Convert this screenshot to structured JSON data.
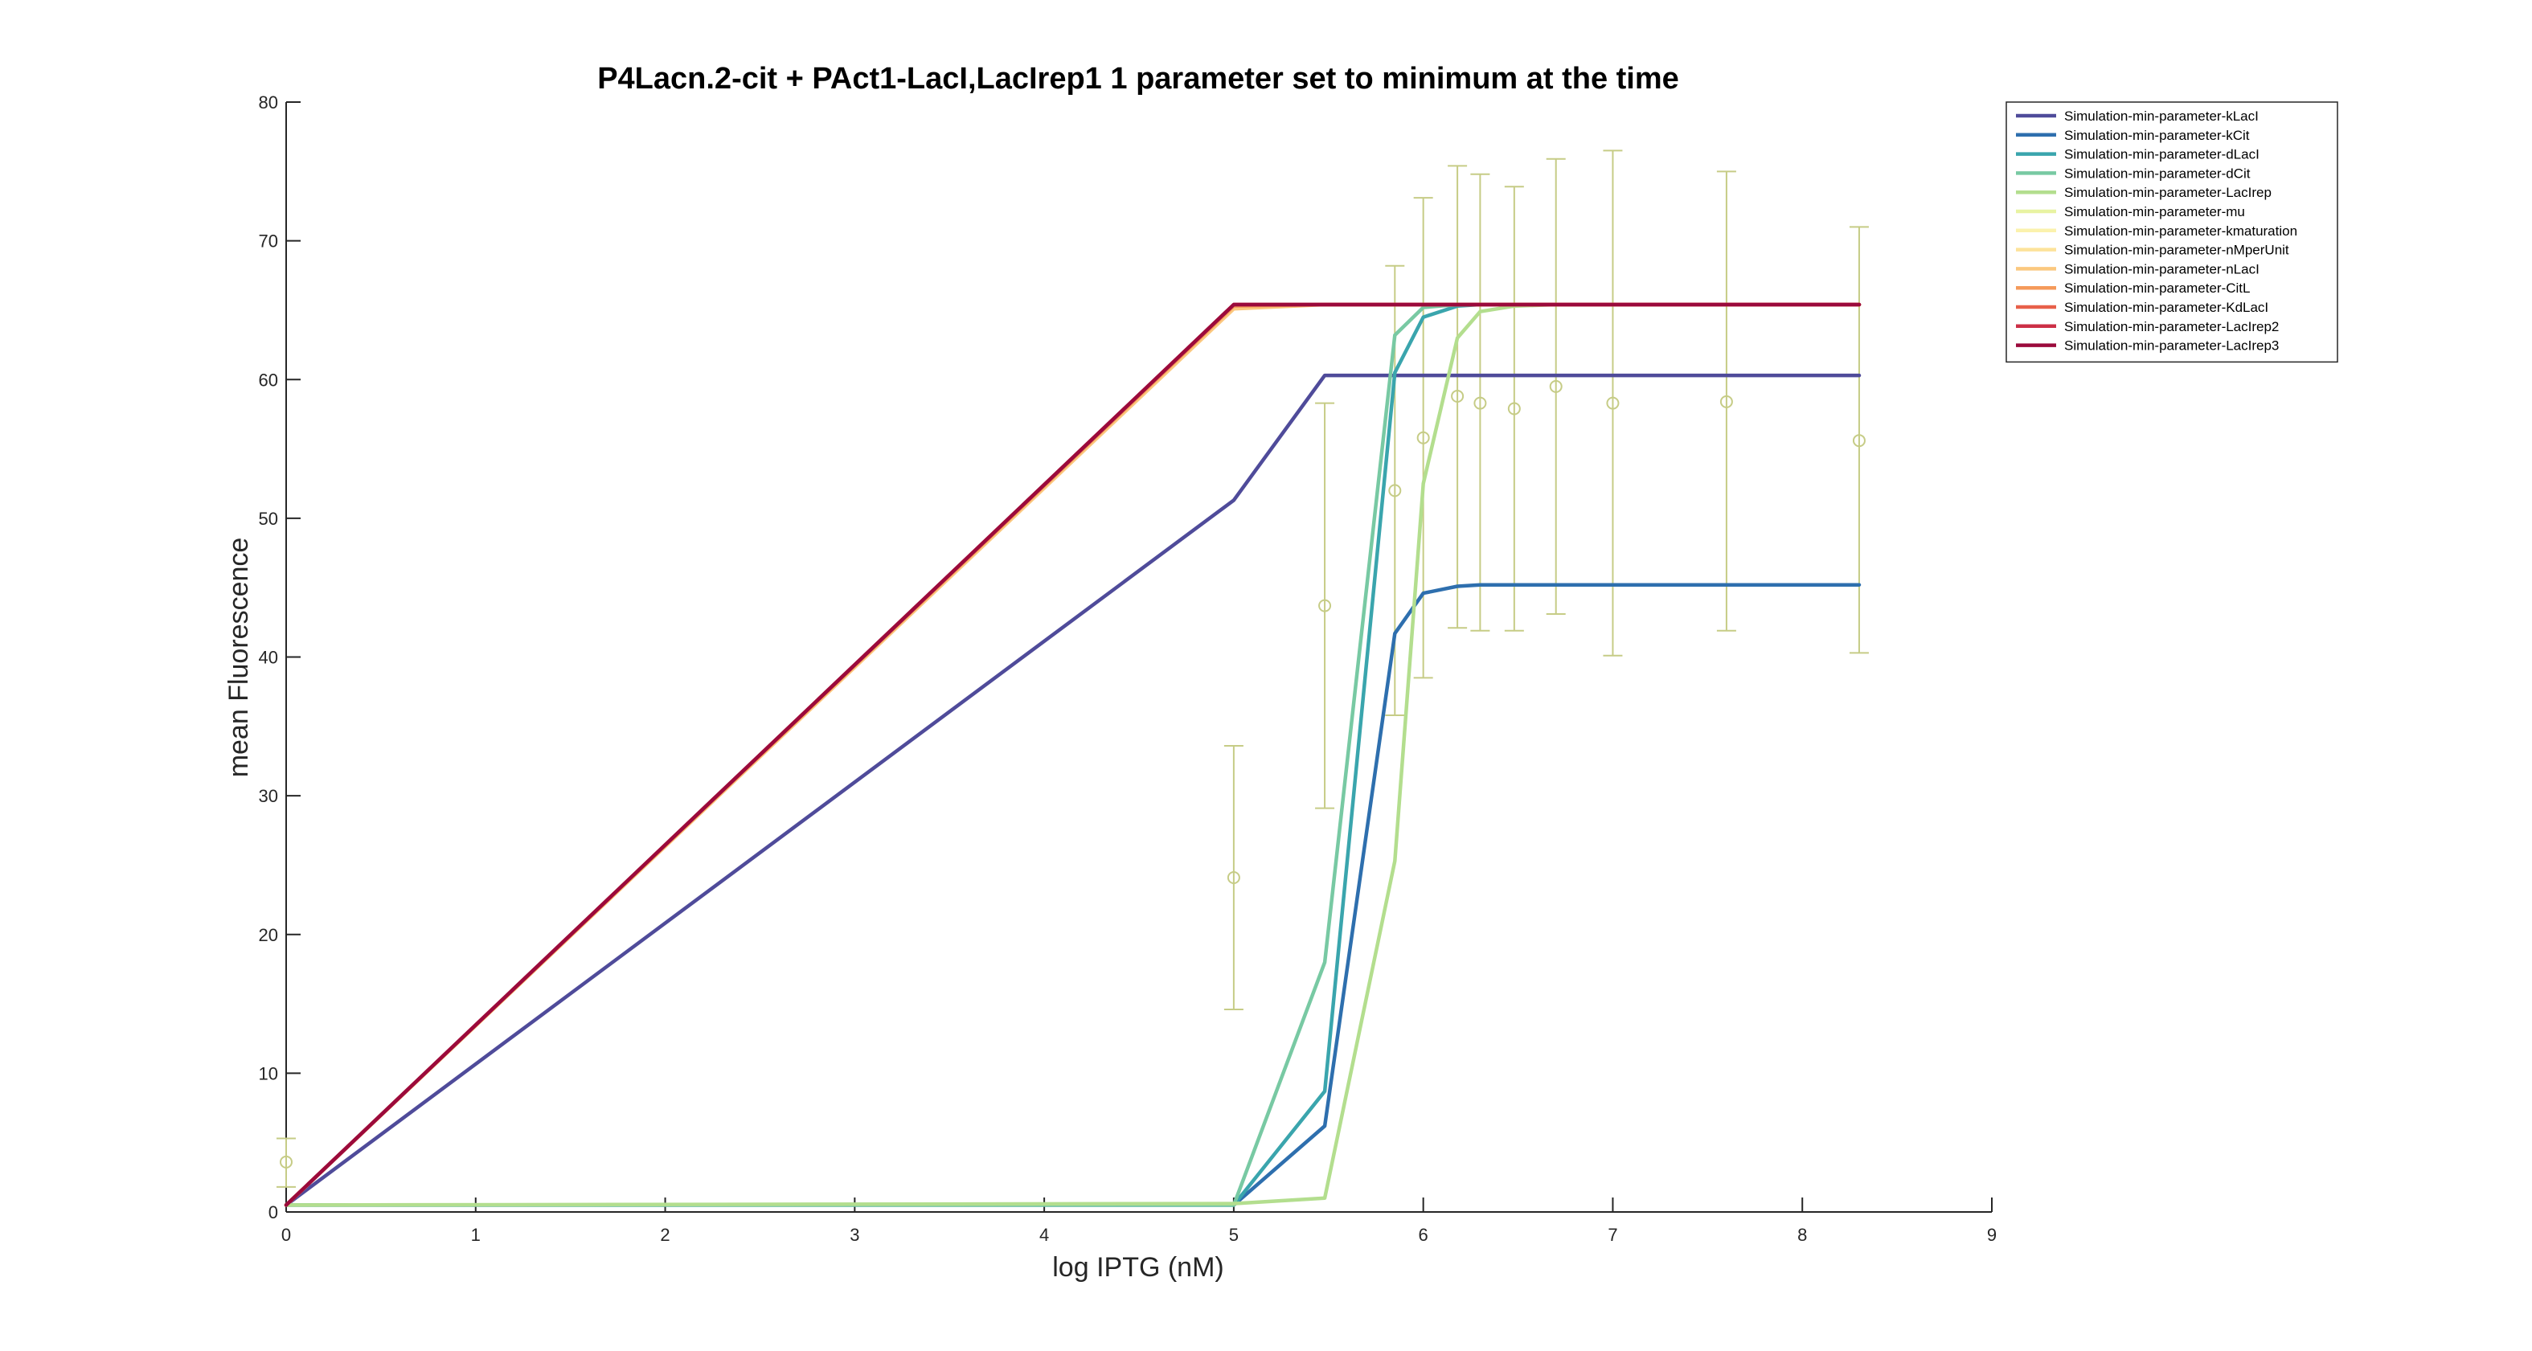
{
  "chart_data": {
    "type": "line",
    "title": "P4Lacn.2-cit + PAct1-LacI,LacIrep1 1 parameter set to minimum at the time",
    "xlabel": "log IPTG (nM)",
    "ylabel": "mean Fluorescence",
    "xlim": [
      0,
      9
    ],
    "ylim": [
      0,
      80
    ],
    "xticks": [
      0,
      1,
      2,
      3,
      4,
      5,
      6,
      7,
      8,
      9
    ],
    "yticks": [
      0,
      10,
      20,
      30,
      40,
      50,
      60,
      70,
      80
    ],
    "grid": false,
    "legend_position": "outside-top-right",
    "series": [
      {
        "name": "Simulation-min-parameter-kLacI",
        "color": "#4f4b9a",
        "x": [
          0,
          5,
          5.48,
          5.85,
          6,
          6.18,
          6.3,
          6.48,
          6.7,
          7,
          7.6,
          8.3
        ],
        "y": [
          0.5,
          51.3,
          60.3,
          60.3,
          60.3,
          60.3,
          60.3,
          60.3,
          60.3,
          60.3,
          60.3,
          60.3
        ]
      },
      {
        "name": "Simulation-min-parameter-kCit",
        "color": "#2e6fae",
        "x": [
          0,
          5,
          5.48,
          5.85,
          6,
          6.18,
          6.3,
          6.48,
          6.7,
          7,
          7.6,
          8.3
        ],
        "y": [
          0.5,
          0.5,
          6.2,
          41.7,
          44.6,
          45.1,
          45.2,
          45.2,
          45.2,
          45.2,
          45.2,
          45.2
        ]
      },
      {
        "name": "Simulation-min-parameter-dLacI",
        "color": "#3aa5ad",
        "x": [
          0,
          5,
          5.48,
          5.85,
          6,
          6.18,
          6.3,
          6.48,
          6.7,
          7,
          7.6,
          8.3
        ],
        "y": [
          0.5,
          0.5,
          8.7,
          60.5,
          64.5,
          65.3,
          65.4,
          65.4,
          65.4,
          65.4,
          65.4,
          65.4
        ]
      },
      {
        "name": "Simulation-min-parameter-dCit",
        "color": "#78c9a3",
        "x": [
          0,
          5,
          5.48,
          5.85,
          6,
          6.18,
          6.3,
          6.48,
          6.7,
          7,
          7.6,
          8.3
        ],
        "y": [
          0.5,
          0.5,
          18.0,
          63.2,
          65.2,
          65.4,
          65.4,
          65.4,
          65.4,
          65.4,
          65.4,
          65.4
        ]
      },
      {
        "name": "Simulation-min-parameter-LacIrep",
        "color": "#b3de8e",
        "x": [
          0,
          5,
          5.48,
          5.85,
          6,
          6.18,
          6.3,
          6.48,
          6.7,
          7,
          7.6,
          8.3
        ],
        "y": [
          0.5,
          0.6,
          1.0,
          25.3,
          52.5,
          63.0,
          64.9,
          65.3,
          65.4,
          65.4,
          65.4,
          65.4
        ]
      },
      {
        "name": "Simulation-min-parameter-mu",
        "color": "#e8f3a2",
        "x": [
          0,
          5,
          5.48,
          8.3
        ],
        "y": [
          0.5,
          65.3,
          65.4,
          65.4
        ]
      },
      {
        "name": "Simulation-min-parameter-kmaturation",
        "color": "#fbf2ad",
        "x": [
          0,
          5,
          5.48,
          8.3
        ],
        "y": [
          0.5,
          65.3,
          65.4,
          65.4
        ]
      },
      {
        "name": "Simulation-min-parameter-nMperUnit",
        "color": "#fde39b",
        "x": [
          0,
          5,
          5.48,
          8.3
        ],
        "y": [
          0.5,
          65.3,
          65.4,
          65.4
        ]
      },
      {
        "name": "Simulation-min-parameter-nLacI",
        "color": "#fbc87f",
        "x": [
          0,
          5,
          5.48,
          8.3
        ],
        "y": [
          0.5,
          65.1,
          65.4,
          65.4
        ]
      },
      {
        "name": "Simulation-min-parameter-CitL",
        "color": "#f59a5a",
        "x": [
          0,
          5,
          5.48,
          8.3
        ],
        "y": [
          0.5,
          65.3,
          65.4,
          65.4
        ]
      },
      {
        "name": "Simulation-min-parameter-KdLacI",
        "color": "#e8604a",
        "x": [
          0,
          5,
          5.48,
          8.3
        ],
        "y": [
          0.5,
          65.4,
          65.4,
          65.4
        ]
      },
      {
        "name": "Simulation-min-parameter-LacIrep2",
        "color": "#cc2f46",
        "x": [
          0,
          5,
          5.48,
          8.3
        ],
        "y": [
          0.5,
          65.4,
          65.4,
          65.4
        ]
      },
      {
        "name": "Simulation-min-parameter-LacIrep3",
        "color": "#9b0a3c",
        "x": [
          0,
          5,
          5.48,
          8.3
        ],
        "y": [
          0.5,
          65.4,
          65.4,
          65.4
        ]
      }
    ],
    "experimental_data": {
      "color": "#c6cc86",
      "marker": "circle",
      "points": [
        {
          "x": 0,
          "y": 3.6,
          "err_low": 1.8,
          "err_high": 5.3
        },
        {
          "x": 5,
          "y": 24.1,
          "err_low": 14.6,
          "err_high": 33.6
        },
        {
          "x": 5.48,
          "y": 43.7,
          "err_low": 29.1,
          "err_high": 58.3
        },
        {
          "x": 5.85,
          "y": 52.0,
          "err_low": 35.8,
          "err_high": 68.2
        },
        {
          "x": 6,
          "y": 55.8,
          "err_low": 38.5,
          "err_high": 73.1
        },
        {
          "x": 6.18,
          "y": 58.8,
          "err_low": 42.1,
          "err_high": 75.4
        },
        {
          "x": 6.3,
          "y": 58.3,
          "err_low": 41.9,
          "err_high": 74.8
        },
        {
          "x": 6.48,
          "y": 57.9,
          "err_low": 41.9,
          "err_high": 73.9
        },
        {
          "x": 6.7,
          "y": 59.5,
          "err_low": 43.1,
          "err_high": 75.9
        },
        {
          "x": 7,
          "y": 58.3,
          "err_low": 40.1,
          "err_high": 76.5
        },
        {
          "x": 7.6,
          "y": 58.4,
          "err_low": 41.9,
          "err_high": 75.0
        },
        {
          "x": 8.3,
          "y": 55.6,
          "err_low": 40.3,
          "err_high": 71.0
        }
      ]
    }
  }
}
